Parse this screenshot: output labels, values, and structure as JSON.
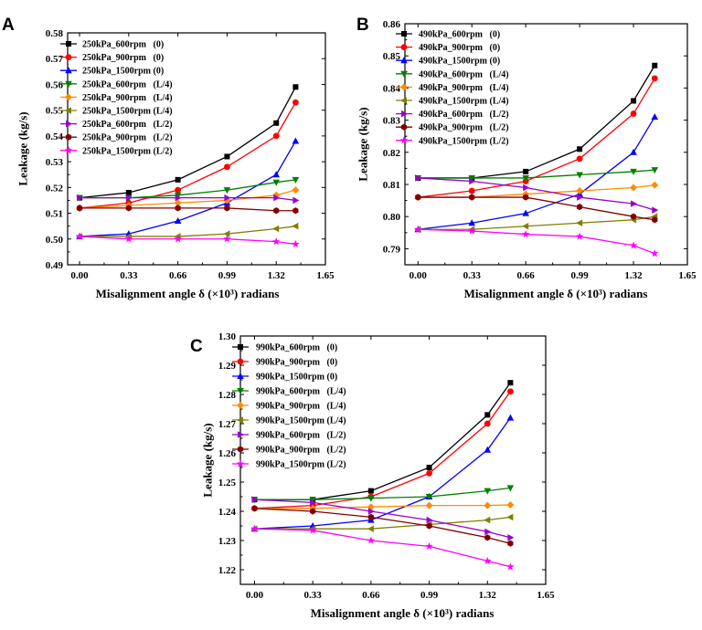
{
  "figure": {
    "description_labels": [
      "A",
      "B",
      "C"
    ]
  },
  "chart_data": [
    {
      "panel": "A",
      "type": "line",
      "xlabel": "Misalignment angle δ (×10³) radians",
      "ylabel": "Leakage (kg/s)",
      "xlim": [
        -0.08,
        1.65
      ],
      "ylim": [
        0.49,
        0.58
      ],
      "xticks": [
        0.0,
        0.33,
        0.66,
        0.99,
        1.32,
        1.65
      ],
      "xtick_labels": [
        "0.00",
        "0.33",
        "0.66",
        "0.99",
        "1.32",
        "1.65"
      ],
      "yticks": [
        0.49,
        0.5,
        0.51,
        0.52,
        0.53,
        0.54,
        0.55,
        0.56,
        0.57,
        0.58
      ],
      "ytick_labels": [
        "0.49",
        "0.50",
        "0.51",
        "0.52",
        "0.53",
        "0.54",
        "0.55",
        "0.56",
        "0.57",
        "0.58"
      ],
      "x": [
        0.0,
        0.33,
        0.66,
        0.99,
        1.32,
        1.45
      ],
      "legend_position": "top-left",
      "series": [
        {
          "name": "250kPa_600rpm   (0)",
          "marker": "square",
          "color": "#000000",
          "values": [
            0.516,
            0.518,
            0.523,
            0.532,
            0.545,
            0.559
          ]
        },
        {
          "name": "250kPa_900rpm   (0)",
          "marker": "circle",
          "color": "#ff0000",
          "values": [
            0.512,
            0.514,
            0.519,
            0.528,
            0.54,
            0.553
          ]
        },
        {
          "name": "250kPa_1500rpm (0)",
          "marker": "triangle-up",
          "color": "#0000ff",
          "values": [
            0.501,
            0.502,
            0.507,
            0.514,
            0.525,
            0.538
          ]
        },
        {
          "name": "250kPa_600rpm   (L/4)",
          "marker": "triangle-down",
          "color": "#008000",
          "values": [
            0.516,
            0.516,
            0.517,
            0.519,
            0.522,
            0.523
          ]
        },
        {
          "name": "250kPa_900rpm   (L/4)",
          "marker": "diamond",
          "color": "#ff8c00",
          "values": [
            0.512,
            0.513,
            0.514,
            0.515,
            0.517,
            0.519
          ]
        },
        {
          "name": "250kPa_1500rpm (L/4)",
          "marker": "triangle-left",
          "color": "#808000",
          "values": [
            0.501,
            0.501,
            0.501,
            0.502,
            0.504,
            0.505
          ]
        },
        {
          "name": "250kPa_600rpm   (L/2)",
          "marker": "triangle-right",
          "color": "#9900cc",
          "values": [
            0.516,
            0.516,
            0.516,
            0.516,
            0.516,
            0.515
          ]
        },
        {
          "name": "250kPa_900rpm   (L/2)",
          "marker": "hexagon",
          "color": "#800000",
          "values": [
            0.512,
            0.512,
            0.512,
            0.512,
            0.511,
            0.511
          ]
        },
        {
          "name": "250kPa_1500rpm (L/2)",
          "marker": "star",
          "color": "#ff00ff",
          "values": [
            0.501,
            0.5,
            0.5,
            0.5,
            0.499,
            0.498
          ]
        }
      ]
    },
    {
      "panel": "B",
      "type": "line",
      "xlabel": "Misalignment angle δ (×10³) radians",
      "ylabel": "Leakage (kg/s)",
      "xlim": [
        -0.08,
        1.65
      ],
      "ylim": [
        0.785,
        0.86
      ],
      "xticks": [
        0.0,
        0.33,
        0.66,
        0.99,
        1.32,
        1.65
      ],
      "xtick_labels": [
        "0.00",
        "0.33",
        "0.66",
        "0.99",
        "1.32",
        "1.65"
      ],
      "yticks": [
        0.79,
        0.8,
        0.81,
        0.82,
        0.83,
        0.84,
        0.85,
        0.86
      ],
      "ytick_labels": [
        "0.79",
        "0.80",
        "0.81",
        "0.82",
        "0.83",
        "0.84",
        "0.85",
        "0.86"
      ],
      "x": [
        0.0,
        0.33,
        0.66,
        0.99,
        1.32,
        1.45
      ],
      "legend_position": "top-left",
      "series": [
        {
          "name": "490kPa_600rpm   (0)",
          "marker": "square",
          "color": "#000000",
          "values": [
            0.812,
            0.812,
            0.814,
            0.821,
            0.836,
            0.847
          ]
        },
        {
          "name": "490kPa_900rpm   (0)",
          "marker": "circle",
          "color": "#ff0000",
          "values": [
            0.806,
            0.808,
            0.811,
            0.818,
            0.832,
            0.843
          ]
        },
        {
          "name": "490kPa_1500rpm (0)",
          "marker": "triangle-up",
          "color": "#0000ff",
          "values": [
            0.796,
            0.798,
            0.801,
            0.807,
            0.82,
            0.831
          ]
        },
        {
          "name": "490kPa_600rpm   (L/4)",
          "marker": "triangle-down",
          "color": "#008000",
          "values": [
            0.812,
            0.812,
            0.812,
            0.813,
            0.814,
            0.8145
          ]
        },
        {
          "name": "490kPa_900rpm   (L/4)",
          "marker": "diamond",
          "color": "#ff8c00",
          "values": [
            0.806,
            0.806,
            0.807,
            0.808,
            0.809,
            0.8098
          ]
        },
        {
          "name": "490kPa_1500rpm (L/4)",
          "marker": "triangle-left",
          "color": "#808000",
          "values": [
            0.796,
            0.796,
            0.797,
            0.798,
            0.799,
            0.8
          ]
        },
        {
          "name": "490kPa_600rpm   (L/2)",
          "marker": "triangle-right",
          "color": "#9900cc",
          "values": [
            0.812,
            0.811,
            0.809,
            0.806,
            0.804,
            0.802
          ]
        },
        {
          "name": "490kPa_900rpm   (L/2)",
          "marker": "hexagon",
          "color": "#800000",
          "values": [
            0.806,
            0.806,
            0.806,
            0.803,
            0.8,
            0.799
          ]
        },
        {
          "name": "490kPa_1500rpm (L/2)",
          "marker": "star",
          "color": "#ff00ff",
          "values": [
            0.796,
            0.7955,
            0.7945,
            0.7938,
            0.791,
            0.7885
          ]
        }
      ]
    },
    {
      "panel": "C",
      "type": "line",
      "xlabel": "Misalignment angle δ (×10³) radians",
      "ylabel": "Leakage (kg/s)",
      "xlim": [
        -0.08,
        1.65
      ],
      "ylim": [
        1.215,
        1.3
      ],
      "xticks": [
        0.0,
        0.33,
        0.66,
        0.99,
        1.32,
        1.65
      ],
      "xtick_labels": [
        "0.00",
        "0.33",
        "0.66",
        "0.99",
        "1.32",
        "1.65"
      ],
      "yticks": [
        1.22,
        1.23,
        1.24,
        1.25,
        1.26,
        1.27,
        1.28,
        1.29,
        1.3
      ],
      "ytick_labels": [
        "1.22",
        "1.23",
        "1.24",
        "1.25",
        "1.26",
        "1.27",
        "1.28",
        "1.29",
        "1.30"
      ],
      "x": [
        0.0,
        0.33,
        0.66,
        0.99,
        1.32,
        1.45
      ],
      "legend_position": "top-left",
      "series": [
        {
          "name": "990kPa_600rpm   (0)",
          "marker": "square",
          "color": "#000000",
          "values": [
            1.244,
            1.244,
            1.247,
            1.255,
            1.273,
            1.284
          ]
        },
        {
          "name": "990kPa_900rpm   (0)",
          "marker": "circle",
          "color": "#ff0000",
          "values": [
            1.241,
            1.242,
            1.245,
            1.253,
            1.27,
            1.281
          ]
        },
        {
          "name": "990kPa_1500rpm (0)",
          "marker": "triangle-up",
          "color": "#0000ff",
          "values": [
            1.234,
            1.235,
            1.237,
            1.245,
            1.261,
            1.272
          ]
        },
        {
          "name": "990kPa_600rpm   (L/4)",
          "marker": "triangle-down",
          "color": "#008000",
          "values": [
            1.244,
            1.244,
            1.2445,
            1.245,
            1.247,
            1.248
          ]
        },
        {
          "name": "990kPa_900rpm   (L/4)",
          "marker": "diamond",
          "color": "#ff8c00",
          "values": [
            1.241,
            1.241,
            1.2415,
            1.242,
            1.242,
            1.2422
          ]
        },
        {
          "name": "990kPa_1500rpm (L/4)",
          "marker": "triangle-left",
          "color": "#808000",
          "values": [
            1.234,
            1.234,
            1.234,
            1.2355,
            1.237,
            1.238
          ]
        },
        {
          "name": "990kPa_600rpm   (L/2)",
          "marker": "triangle-right",
          "color": "#9900cc",
          "values": [
            1.244,
            1.243,
            1.24,
            1.237,
            1.233,
            1.231
          ]
        },
        {
          "name": "990kPa_900rpm   (L/2)",
          "marker": "hexagon",
          "color": "#800000",
          "values": [
            1.241,
            1.24,
            1.238,
            1.235,
            1.231,
            1.229
          ]
        },
        {
          "name": "990kPa_1500rpm (L/2)",
          "marker": "star",
          "color": "#ff00ff",
          "values": [
            1.234,
            1.2335,
            1.23,
            1.228,
            1.223,
            1.221
          ]
        }
      ]
    }
  ]
}
